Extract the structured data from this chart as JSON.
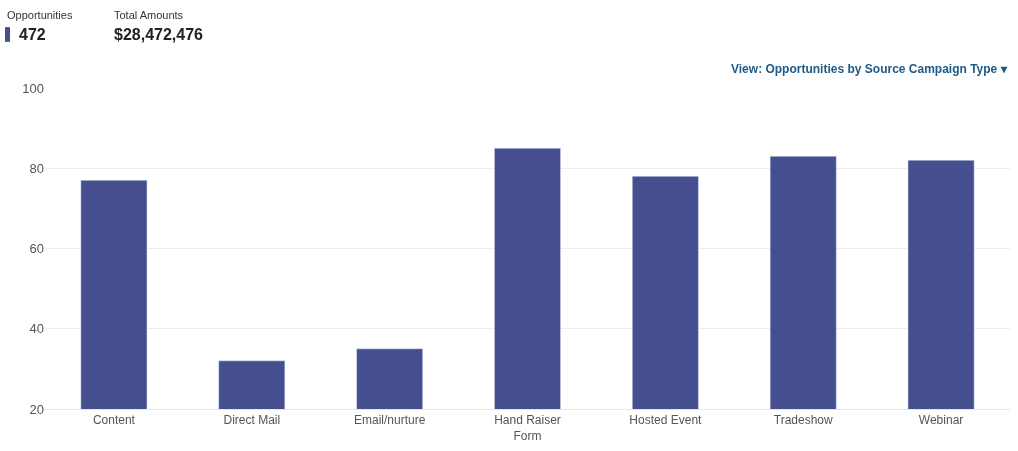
{
  "chart_data": {
    "type": "bar",
    "annotations": [
      "Opportunities",
      "472",
      "Total Amounts",
      "$28,472,476",
      "View: Opportunities by Source Campaign Type ▾"
    ],
    "categories": [
      "Content",
      "Direct Mail",
      "Email/nurture",
      "Hand Raiser Form",
      "Hosted Event",
      "Tradeshow",
      "Webinar"
    ],
    "series": [
      {
        "color": "#454f90",
        "values": [
          77,
          32,
          35,
          85,
          78,
          83,
          82
        ]
      }
    ],
    "ylim": [
      20,
      100
    ],
    "yticks": [
      20,
      40,
      60,
      80,
      100
    ],
    "grid": "y"
  }
}
